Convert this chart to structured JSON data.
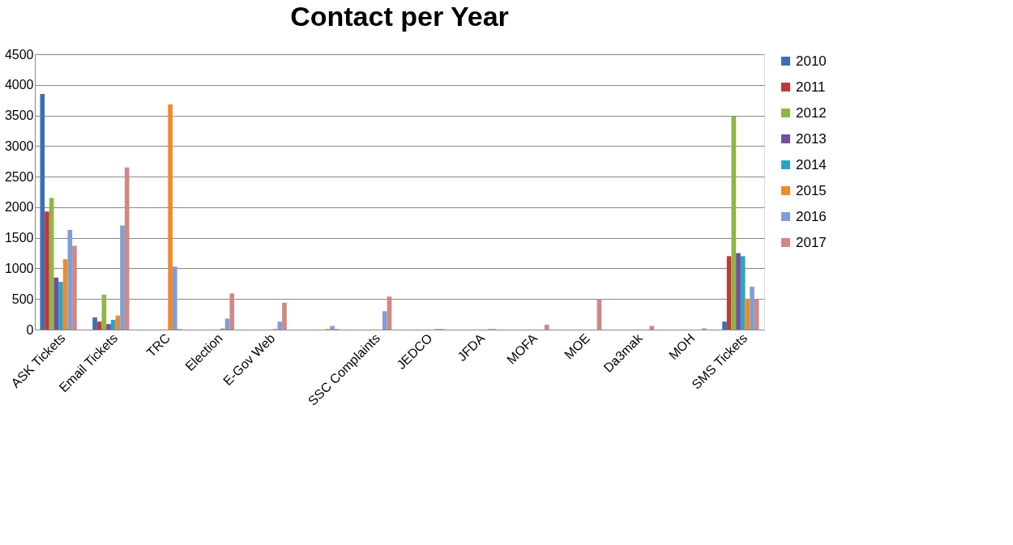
{
  "chart_data": {
    "type": "bar",
    "title": "Contact  per Year",
    "categories": [
      "ASK Tickets",
      "Email Tickets",
      "TRC",
      "Election",
      "E-Gov Web",
      null,
      "SSC Complaints",
      "JEDCO",
      "JFDA",
      "MOFA",
      "MOE",
      "Da3mak",
      "MOH",
      "SMS Tickets"
    ],
    "series": [
      {
        "name": "2010",
        "color": "#3c6eb4",
        "values": [
          3850,
          200,
          0,
          0,
          0,
          0,
          0,
          0,
          0,
          0,
          0,
          0,
          0,
          130
        ]
      },
      {
        "name": "2011",
        "color": "#be3a36",
        "values": [
          1930,
          130,
          0,
          0,
          0,
          0,
          0,
          0,
          0,
          0,
          0,
          0,
          0,
          1200
        ]
      },
      {
        "name": "2012",
        "color": "#8fb646",
        "values": [
          2150,
          570,
          0,
          0,
          0,
          0,
          0,
          0,
          0,
          0,
          0,
          0,
          0,
          3480
        ]
      },
      {
        "name": "2013",
        "color": "#70509a",
        "values": [
          850,
          90,
          0,
          0,
          0,
          0,
          0,
          0,
          0,
          0,
          0,
          0,
          0,
          1250
        ]
      },
      {
        "name": "2014",
        "color": "#2fa3c0",
        "values": [
          780,
          160,
          0,
          0,
          0,
          0,
          0,
          0,
          0,
          0,
          0,
          0,
          0,
          1200
        ]
      },
      {
        "name": "2015",
        "color": "#f08a2c",
        "values": [
          1150,
          230,
          3680,
          20,
          10,
          10,
          0,
          0,
          0,
          0,
          0,
          0,
          0,
          500
        ]
      },
      {
        "name": "2016",
        "color": "#7f9fd4",
        "values": [
          1630,
          1700,
          1030,
          180,
          130,
          60,
          300,
          10,
          10,
          0,
          0,
          0,
          0,
          700
        ]
      },
      {
        "name": "2017",
        "color": "#d08886",
        "values": [
          1370,
          2650,
          10,
          590,
          440,
          10,
          540,
          10,
          10,
          80,
          500,
          60,
          20,
          500
        ]
      }
    ],
    "ylim": [
      0,
      4500
    ],
    "yticks": [
      0,
      500,
      1000,
      1500,
      2000,
      2500,
      3000,
      3500,
      4000,
      4500
    ],
    "grid": "y",
    "legend": "right"
  }
}
